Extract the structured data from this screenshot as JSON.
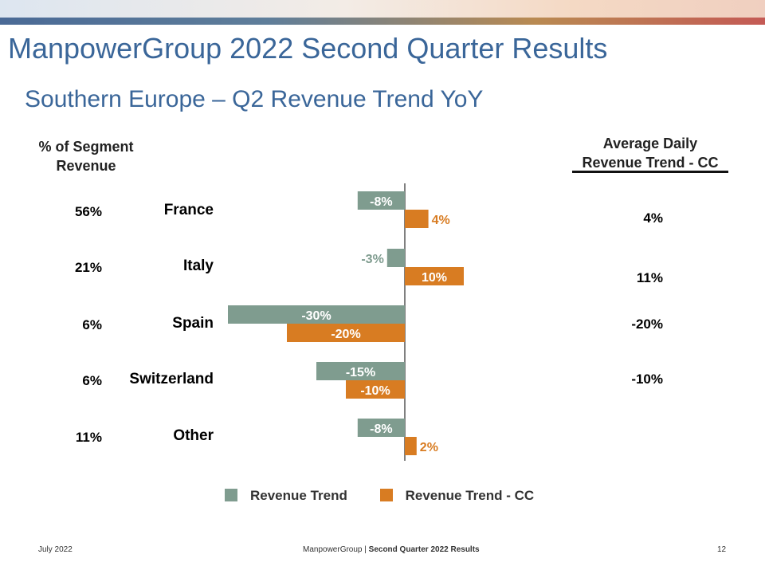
{
  "header": {
    "title": "ManpowerGroup 2022 Second Quarter Results",
    "subtitle": "Southern Europe – Q2 Revenue Trend YoY"
  },
  "table": {
    "left_header": [
      "% of Segment",
      "Revenue"
    ],
    "right_header": [
      "Average Daily",
      "Revenue Trend - CC"
    ],
    "rows": [
      {
        "segment_pct": "56%",
        "country": "France",
        "adr_cc": "4%"
      },
      {
        "segment_pct": "21%",
        "country": "Italy",
        "adr_cc": "11%"
      },
      {
        "segment_pct": "6%",
        "country": "Spain",
        "adr_cc": "-20%"
      },
      {
        "segment_pct": "6%",
        "country": "Switzerland",
        "adr_cc": "-10%"
      },
      {
        "segment_pct": "11%",
        "country": "Other",
        "adr_cc": ""
      }
    ]
  },
  "chart_data": {
    "type": "bar",
    "orientation": "horizontal",
    "categories": [
      "France",
      "Italy",
      "Spain",
      "Switzerland",
      "Other"
    ],
    "series": [
      {
        "name": "Revenue Trend",
        "values": [
          -8,
          -3,
          -30,
          -15,
          -8
        ],
        "labels": [
          "-8%",
          "-3%",
          "-30%",
          "-15%",
          "-8%"
        ],
        "color": "#7f9c8f"
      },
      {
        "name": "Revenue Trend - CC",
        "values": [
          4,
          10,
          -20,
          -10,
          2
        ],
        "labels": [
          "4%",
          "10%",
          "-20%",
          "-10%",
          "2%"
        ],
        "color": "#d87c22"
      }
    ],
    "legend_position": "bottom",
    "grid": false
  },
  "footer": {
    "date": "July 2022",
    "company": "ManpowerGroup",
    "separator": "|",
    "report": "Second Quarter 2022 Results",
    "page": "12"
  },
  "colors": {
    "title": "#3a6699",
    "trend": "#7f9c8f",
    "trend_cc": "#d87c22"
  }
}
